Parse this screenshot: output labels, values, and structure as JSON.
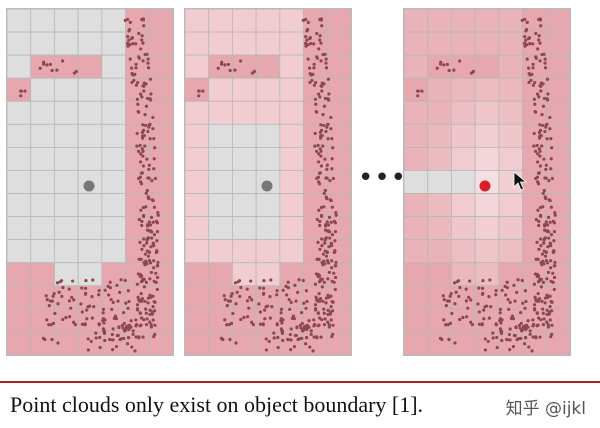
{
  "ellipsis": "•••",
  "caption": "Point clouds only exist on object boundary [1].",
  "watermark": "知乎 @ijkl",
  "colors": {
    "grid_line": "#b8b8b8",
    "empty_cell": "#dedede",
    "boundary_cell": "#e6a7ae",
    "point": "#8e4650",
    "query_point_gray": "#777777",
    "query_point_red": "#d91f26",
    "rule": "#b3201c"
  },
  "icons": {
    "cursor": "mouse-pointer-icon"
  }
}
